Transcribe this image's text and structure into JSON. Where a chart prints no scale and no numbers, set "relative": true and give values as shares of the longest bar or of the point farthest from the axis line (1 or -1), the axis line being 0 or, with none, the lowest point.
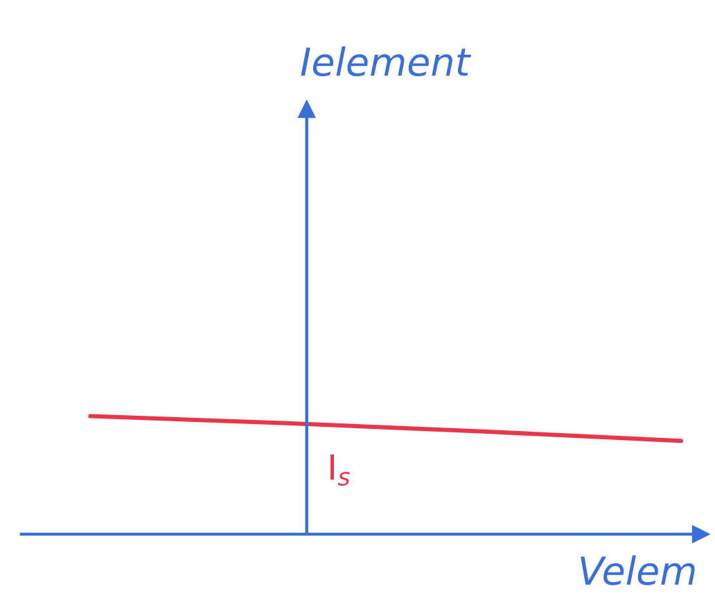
{
  "chart_data": {
    "type": "line",
    "relative": true,
    "xlabel": "Velem",
    "categories": [
      null,
      null,
      null,
      null
    ],
    "series": [
      {
        "color": "#e8364a",
        "values": [
          1,
          0.94,
          0.87,
          0.79
        ]
      }
    ],
    "annotations": [
      "Ielement",
      "I$_{s}$"
    ]
  }
}
